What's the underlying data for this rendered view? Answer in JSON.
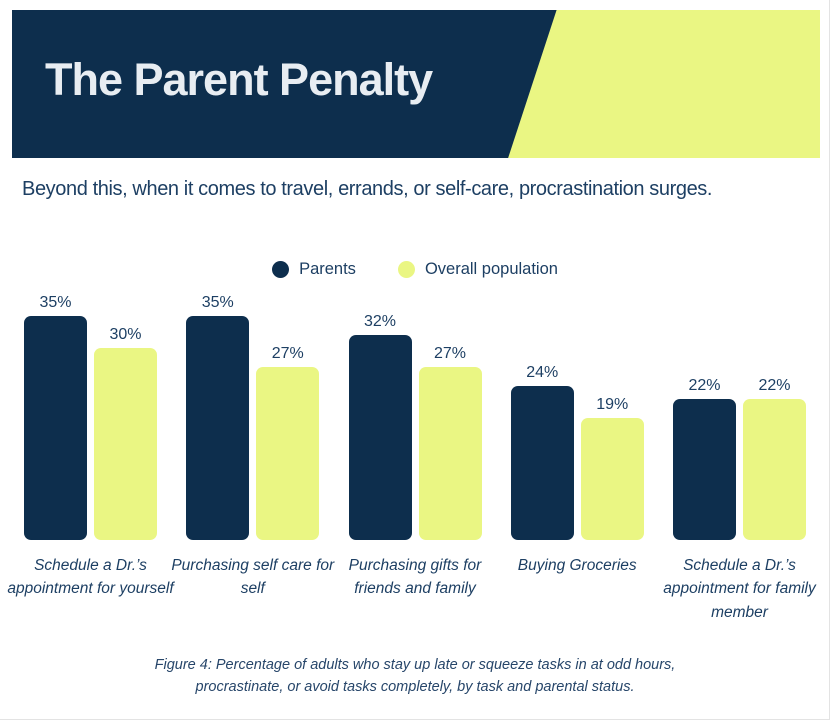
{
  "header": {
    "title": "The Parent Penalty"
  },
  "subtitle": "Beyond this, when it comes to travel, errands, or self-care, procrastination surges.",
  "legend": [
    {
      "label": "Parents",
      "color": "#0d2e4d"
    },
    {
      "label": "Overall population",
      "color": "#eaf683"
    }
  ],
  "chart_data": {
    "type": "bar",
    "categories": [
      "Schedule a Dr.’s appointment for yourself",
      "Purchasing self care for self",
      "Purchasing gifts for friends and family",
      "Buying Groceries",
      "Schedule a Dr.’s appointment for family member"
    ],
    "series": [
      {
        "name": "Parents",
        "color": "#0d2e4d",
        "values": [
          35,
          35,
          32,
          24,
          22
        ]
      },
      {
        "name": "Overall population",
        "color": "#eaf683",
        "values": [
          30,
          27,
          27,
          19,
          22
        ]
      }
    ],
    "value_suffix": "%",
    "value_labels_shown": true,
    "ylim": [
      0,
      37
    ],
    "grid": false,
    "axes_shown": false,
    "legend_position": "top-center"
  },
  "caption": "Figure 4: Percentage of adults who stay up late or squeeze tasks in at odd hours, procrastinate, or avoid tasks completely, by task and parental status.",
  "colors": {
    "navy": "#0d2e4d",
    "chartreuse": "#eaf683",
    "text_navy": "#1d3f63",
    "title_text": "#e8edf2",
    "background": "#ffffff"
  }
}
